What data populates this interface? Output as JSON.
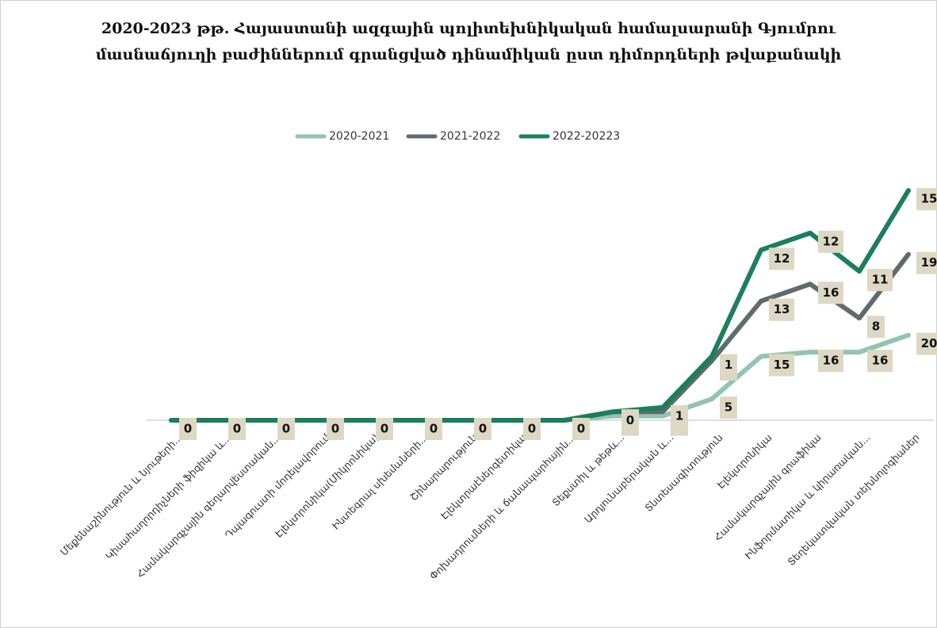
{
  "chart_data": {
    "type": "line",
    "stacked": true,
    "title": [
      "2020-2023 թթ. Հայաստանի ազգային պոլիտեխնիկական համալսարանի  Գյումրու",
      "մասնաճյուղի բաժիններում գրանցված դինամիկան ըստ դիմորդների թվաքանակի"
    ],
    "categories": [
      "Մեքենաշինություն և նյութերի...",
      "Կիսահաղորդիչների ֆիզիկա և...",
      "Համակարգչային գեղարվեստական...",
      "Դպագուստի մոդելավորում",
      "Էլեկտրոնիկա(Միկրոնիկա)",
      "Ինտեգրալ սխեմաների...",
      "Շինարարություն",
      "Էլեկտրաէներգետիկա",
      "Փոխադրումների և ճանապարհային...",
      "Տեքստիլ և թեթև...",
      "Արդյունաբերական և...",
      "Տնտեսագիտություն",
      "Էլեկտրոնիկա",
      "Համակարգչային գրաֆիկա",
      "Ինֆորմատիկա և կիրառական...",
      "Տեղեկատվական տեխնոլոգիաներ"
    ],
    "series": [
      {
        "name": "2020-2021",
        "color": "#93c4b2",
        "values": [
          0,
          0,
          0,
          0,
          0,
          0,
          0,
          0,
          0,
          1,
          1,
          5,
          15,
          16,
          16,
          20
        ]
      },
      {
        "name": "2021-2022",
        "color": "#5f6b6d",
        "values": [
          0,
          0,
          0,
          0,
          0,
          0,
          0,
          0,
          0,
          1,
          1,
          9,
          13,
          16,
          8,
          19
        ]
      },
      {
        "name": "2022-20223",
        "color": "#1a7f5a",
        "values": [
          0,
          0,
          0,
          0,
          0,
          0,
          0,
          0,
          0,
          0,
          1,
          1,
          12,
          12,
          11,
          15
        ]
      }
    ],
    "ylim": [
      0,
      60
    ],
    "legend": "top"
  }
}
